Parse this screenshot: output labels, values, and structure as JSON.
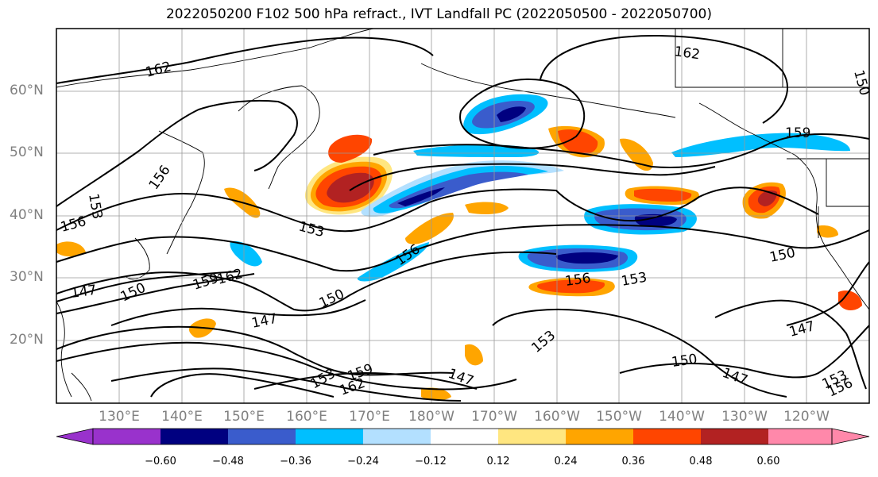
{
  "title": "2022050200 F102 500 hPa refract., IVT Landfall PC (2022050500 - 2022050700)",
  "lat_labels": [
    "60°N",
    "50°N",
    "40°N",
    "30°N",
    "20°N"
  ],
  "lon_labels": [
    "130°E",
    "140°E",
    "150°E",
    "160°E",
    "170°E",
    "180°W",
    "170°W",
    "160°W",
    "150°W",
    "140°W",
    "130°W",
    "120°W"
  ],
  "colorbar": {
    "colors": [
      "#9932cc",
      "#000080",
      "#3a5ccc",
      "#00bfff",
      "#b3e0ff",
      "#ffffff",
      "#ffe680",
      "#ffa500",
      "#ff4500",
      "#b22222",
      "#ff88aa"
    ],
    "ticks": [
      "−0.60",
      "−0.48",
      "−0.36",
      "−0.24",
      "−0.12",
      "0.12",
      "0.24",
      "0.36",
      "0.48",
      "0.60"
    ]
  },
  "contour_labels": [
    "162",
    "162",
    "159",
    "156",
    "153",
    "156",
    "153",
    "150",
    "147",
    "150",
    "159",
    "162",
    "147",
    "150",
    "153",
    "156",
    "153",
    "150",
    "147",
    "147",
    "153",
    "156",
    "159",
    "162",
    "147",
    "150",
    "153",
    "156"
  ]
}
